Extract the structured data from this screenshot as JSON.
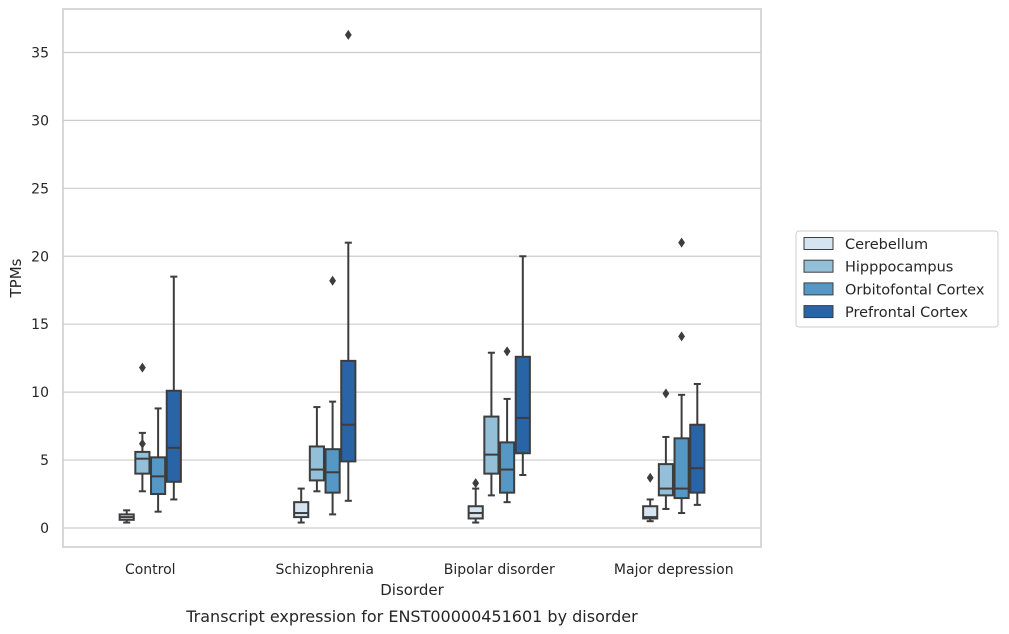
{
  "chart_data": {
    "type": "boxplot",
    "caption": "Transcript expression for ENST00000451601 by disorder",
    "xlabel": "Disorder",
    "ylabel": "TPMs",
    "ylim": [
      -1.4,
      38.2
    ],
    "yticks": [
      0,
      5,
      10,
      15,
      20,
      25,
      30,
      35
    ],
    "grid": true,
    "legend_position": "right",
    "categories": [
      "Control",
      "Schizophrenia",
      "Bipolar disorder",
      "Major depression"
    ],
    "series": [
      {
        "name": "Cerebellum",
        "color": "#d5e4f1",
        "boxes": [
          {
            "min": 0.4,
            "q1": 0.6,
            "median": 0.8,
            "q3": 1.0,
            "max": 1.3,
            "outliers": []
          },
          {
            "min": 0.4,
            "q1": 0.8,
            "median": 1.1,
            "q3": 1.9,
            "max": 2.9,
            "outliers": []
          },
          {
            "min": 0.4,
            "q1": 0.7,
            "median": 1.1,
            "q3": 1.6,
            "max": 2.9,
            "outliers": [
              3.3
            ]
          },
          {
            "min": 0.5,
            "q1": 0.7,
            "median": 0.8,
            "q3": 1.6,
            "max": 2.1,
            "outliers": [
              3.7
            ]
          }
        ]
      },
      {
        "name": "Hipppocampus",
        "color": "#94bfd9",
        "boxes": [
          {
            "min": 2.7,
            "q1": 4.0,
            "median": 5.1,
            "q3": 5.6,
            "max": 7.0,
            "outliers": [
              6.2,
              11.8
            ]
          },
          {
            "min": 2.7,
            "q1": 3.5,
            "median": 4.3,
            "q3": 6.0,
            "max": 8.9,
            "outliers": []
          },
          {
            "min": 2.4,
            "q1": 4.0,
            "median": 5.4,
            "q3": 8.2,
            "max": 12.9,
            "outliers": []
          },
          {
            "min": 1.4,
            "q1": 2.4,
            "median": 2.9,
            "q3": 4.7,
            "max": 6.7,
            "outliers": [
              9.9
            ]
          }
        ]
      },
      {
        "name": "Orbitofontal Cortex",
        "color": "#5598c5",
        "boxes": [
          {
            "min": 1.2,
            "q1": 2.5,
            "median": 3.8,
            "q3": 5.2,
            "max": 8.8,
            "outliers": []
          },
          {
            "min": 1.0,
            "q1": 2.6,
            "median": 4.1,
            "q3": 5.8,
            "max": 9.3,
            "outliers": [
              18.2
            ]
          },
          {
            "min": 1.9,
            "q1": 2.6,
            "median": 4.3,
            "q3": 6.3,
            "max": 9.5,
            "outliers": [
              13.0
            ]
          },
          {
            "min": 1.1,
            "q1": 2.2,
            "median": 2.9,
            "q3": 6.6,
            "max": 9.8,
            "outliers": [
              14.1,
              21.0
            ]
          }
        ]
      },
      {
        "name": "Prefrontal Cortex",
        "color": "#2964a6",
        "boxes": [
          {
            "min": 2.1,
            "q1": 3.4,
            "median": 5.9,
            "q3": 10.1,
            "max": 18.5,
            "outliers": []
          },
          {
            "min": 2.0,
            "q1": 4.9,
            "median": 7.6,
            "q3": 12.3,
            "max": 21.0,
            "outliers": [
              36.3
            ]
          },
          {
            "min": 3.9,
            "q1": 5.5,
            "median": 8.1,
            "q3": 12.6,
            "max": 20.0,
            "outliers": []
          },
          {
            "min": 1.7,
            "q1": 2.6,
            "median": 4.4,
            "q3": 7.6,
            "max": 10.6,
            "outliers": []
          }
        ]
      }
    ]
  }
}
